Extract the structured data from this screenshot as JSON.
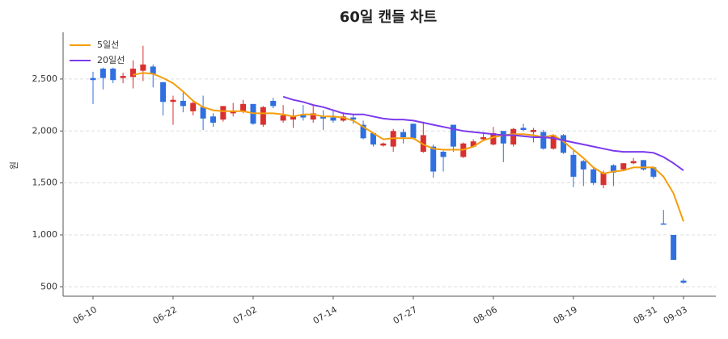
{
  "chart_data": {
    "type": "candlestick",
    "title": "60일 캔들 차트",
    "y_label": "원",
    "categories": [
      "06-10",
      null,
      null,
      null,
      null,
      null,
      null,
      null,
      "06-22",
      null,
      null,
      null,
      null,
      null,
      null,
      null,
      "07-02",
      null,
      null,
      null,
      null,
      null,
      null,
      null,
      "07-14",
      null,
      null,
      null,
      null,
      null,
      null,
      null,
      "07-27",
      null,
      null,
      null,
      null,
      null,
      null,
      null,
      "08-06",
      null,
      null,
      null,
      null,
      null,
      null,
      null,
      "08-19",
      null,
      null,
      null,
      null,
      null,
      null,
      null,
      "08-31",
      null,
      null,
      "09-03"
    ],
    "open": [
      2510,
      2600,
      2600,
      2510,
      2520,
      2580,
      2620,
      2470,
      2280,
      2290,
      2190,
      2230,
      2140,
      2110,
      2170,
      2190,
      2260,
      2060,
      2290,
      2100,
      2110,
      2150,
      2110,
      2140,
      2130,
      2100,
      2130,
      2060,
      1980,
      1860,
      1850,
      1990,
      2070,
      1800,
      1850,
      1800,
      2060,
      1750,
      1850,
      1920,
      1870,
      2000,
      1870,
      2030,
      1990,
      1990,
      1830,
      1960,
      1770,
      1710,
      1630,
      1480,
      1670,
      1630,
      1690,
      1720,
      1650,
      1110,
      1000,
      560
    ],
    "high": [
      2570,
      2610,
      2610,
      2560,
      2680,
      2820,
      2640,
      2470,
      2340,
      2370,
      2300,
      2340,
      2170,
      2240,
      2270,
      2300,
      2260,
      2240,
      2320,
      2250,
      2210,
      2250,
      2250,
      2200,
      2200,
      2180,
      2160,
      2100,
      1990,
      1890,
      2020,
      2020,
      2070,
      2090,
      1870,
      1810,
      2060,
      1890,
      1920,
      1990,
      2040,
      2000,
      2030,
      2070,
      2030,
      2010,
      1970,
      1970,
      1810,
      1720,
      1640,
      1620,
      1680,
      1690,
      1740,
      1720,
      1660,
      1240,
      1000,
      580
    ],
    "low": [
      2260,
      2400,
      2460,
      2460,
      2410,
      2480,
      2420,
      2150,
      2060,
      2180,
      2150,
      2010,
      2040,
      2090,
      2140,
      2170,
      2060,
      2040,
      2220,
      2080,
      2030,
      2100,
      2080,
      2010,
      2080,
      2090,
      2070,
      1920,
      1850,
      1850,
      1800,
      1880,
      1920,
      1790,
      1550,
      1610,
      1800,
      1740,
      1840,
      1900,
      1860,
      1700,
      1850,
      2000,
      1890,
      1820,
      1820,
      1780,
      1460,
      1470,
      1480,
      1450,
      1470,
      1620,
      1680,
      1620,
      1540,
      1100,
      760,
      530
    ],
    "close": [
      2490,
      2510,
      2490,
      2530,
      2600,
      2640,
      2550,
      2280,
      2300,
      2240,
      2270,
      2120,
      2080,
      2240,
      2190,
      2260,
      2070,
      2230,
      2240,
      2150,
      2150,
      2130,
      2170,
      2120,
      2100,
      2140,
      2110,
      1930,
      1870,
      1880,
      2000,
      1940,
      1930,
      1960,
      1610,
      1750,
      1850,
      1880,
      1900,
      1940,
      1980,
      1880,
      2020,
      2010,
      2010,
      1830,
      1960,
      1790,
      1560,
      1630,
      1500,
      1600,
      1600,
      1690,
      1710,
      1630,
      1560,
      1100,
      760,
      540
    ],
    "up_color": "#d8302f",
    "down_color": "#2f6fe0",
    "series": [
      {
        "name": "5일선",
        "color": "#f59e0b",
        "values": [
          null,
          null,
          null,
          null,
          2540,
          2560,
          2550,
          2510,
          2460,
          2380,
          2290,
          2230,
          2200,
          2190,
          2190,
          2190,
          2170,
          2170,
          2170,
          2160,
          2140,
          2160,
          2160,
          2140,
          2140,
          2130,
          2100,
          2040,
          1980,
          1920,
          1930,
          1930,
          1930,
          1870,
          1830,
          1820,
          1820,
          1820,
          1850,
          1910,
          1940,
          1960,
          1970,
          1970,
          1960,
          1940,
          1960,
          1900,
          1820,
          1740,
          1650,
          1590,
          1610,
          1620,
          1650,
          1650,
          1650,
          1560,
          1400,
          1130
        ]
      },
      {
        "name": "20일선",
        "color": "#7c3aed",
        "values": [
          null,
          null,
          null,
          null,
          null,
          null,
          null,
          null,
          null,
          null,
          null,
          null,
          null,
          null,
          null,
          null,
          null,
          null,
          null,
          2330,
          2300,
          2280,
          2250,
          2230,
          2200,
          2170,
          2160,
          2160,
          2140,
          2120,
          2110,
          2110,
          2100,
          2080,
          2060,
          2040,
          2020,
          2000,
          1990,
          1980,
          1970,
          1960,
          1960,
          1950,
          1940,
          1940,
          1930,
          1910,
          1890,
          1870,
          1850,
          1830,
          1810,
          1800,
          1800,
          1800,
          1790,
          1750,
          1690,
          1620
        ]
      }
    ],
    "ylim": [
      410,
      2950
    ],
    "yticks": [
      500,
      {
        "value": 1000,
        "label": "1,000"
      },
      {
        "value": 1500,
        "label": "1,500"
      },
      {
        "value": 2000,
        "label": "2,000"
      },
      {
        "value": 2500,
        "label": "2,500"
      }
    ],
    "grid": true,
    "legend": "upper left"
  }
}
